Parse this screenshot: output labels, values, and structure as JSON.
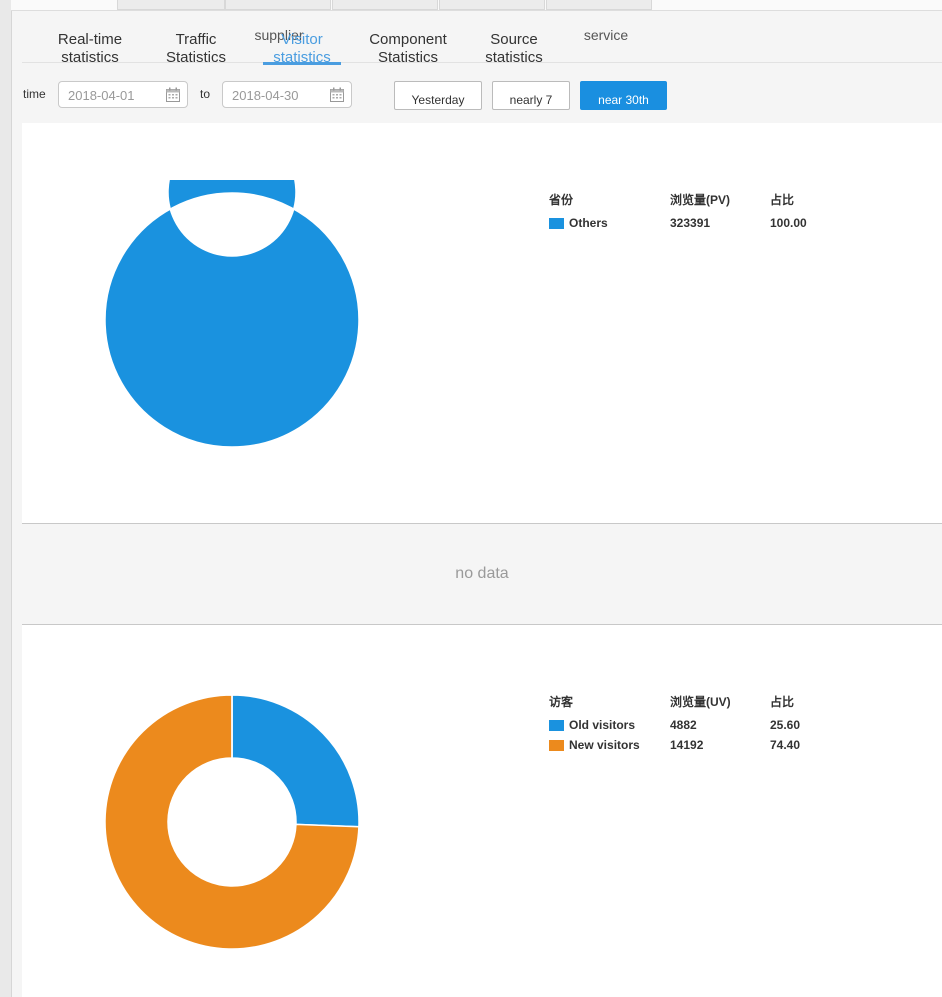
{
  "tabs": [
    {
      "label_line1": "Real-time",
      "label_line2": "statistics"
    },
    {
      "label_line1": "Traffic",
      "label_line2": "Statistics"
    },
    {
      "label_line1": "supplier",
      "label_line2": ""
    },
    {
      "label_line1": "Visitor",
      "label_line2": "statistics"
    },
    {
      "label_line1": "Component",
      "label_line2": "Statistics"
    },
    {
      "label_line1": "Source",
      "label_line2": "statistics"
    },
    {
      "label_line1": "service",
      "label_line2": ""
    }
  ],
  "active_tab": "Visitor statistics",
  "filter": {
    "time_label": "time",
    "to_label": "to",
    "start_date": "2018-04-01",
    "end_date": "2018-04-30",
    "buttons": [
      "Yesterday",
      "nearly 7",
      "near 30th"
    ],
    "active_button": "near 30th"
  },
  "colors": {
    "blue": "#1a92df",
    "orange": "#ec8a1d",
    "active_tab": "#4a9de0"
  },
  "region_section": {
    "headers": [
      "省份",
      "浏览量(PV)",
      "占比"
    ],
    "rows": [
      {
        "name": "Others",
        "value": "323391",
        "pct": "100.00"
      }
    ]
  },
  "nodata_text": "no data",
  "visitor_section": {
    "headers": [
      "访客",
      "浏览量(UV)",
      "占比"
    ],
    "rows": [
      {
        "name": "Old visitors",
        "value": "4882",
        "pct": "25.60"
      },
      {
        "name": "New visitors",
        "value": "14192",
        "pct": "74.40"
      }
    ]
  },
  "chart_data": [
    {
      "type": "pie",
      "categories": [
        "Others"
      ],
      "values": [
        323391
      ],
      "percent": [
        100.0
      ],
      "colors": [
        "#1a92df"
      ],
      "donut": true
    },
    {
      "type": "pie",
      "categories": [
        "Old visitors",
        "New visitors"
      ],
      "values": [
        4882,
        14192
      ],
      "percent": [
        25.6,
        74.4
      ],
      "colors": [
        "#1a92df",
        "#ec8a1d"
      ],
      "donut": true
    }
  ]
}
